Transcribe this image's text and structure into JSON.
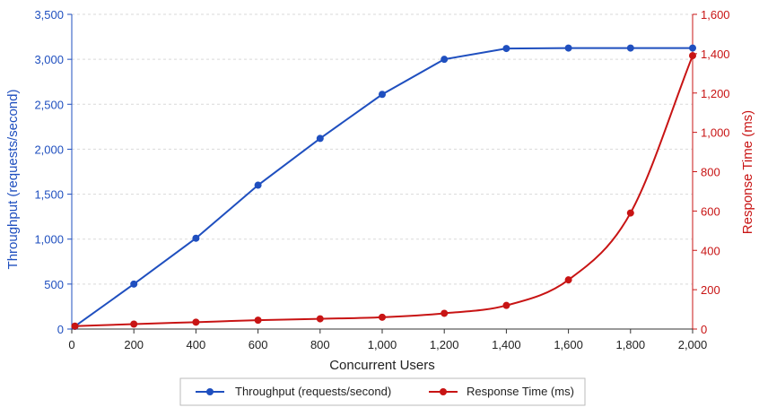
{
  "chart_data": {
    "type": "line",
    "xlabel": "Concurrent Users",
    "ylabel_left": "Throughput (requests/second)",
    "ylabel_right": "Response Time (ms)",
    "xlim": [
      0,
      2000
    ],
    "ylim_left": [
      0,
      3500
    ],
    "ylim_right": [
      0,
      1600
    ],
    "x_ticks": [
      0,
      200,
      400,
      600,
      800,
      1000,
      1200,
      1400,
      1600,
      1800,
      2000
    ],
    "x_tick_labels": [
      "0",
      "200",
      "400",
      "600",
      "800",
      "1,000",
      "1,200",
      "1,400",
      "1,600",
      "1,800",
      "2,000"
    ],
    "y_left_ticks": [
      0,
      500,
      1000,
      1500,
      2000,
      2500,
      3000,
      3500
    ],
    "y_left_tick_labels": [
      "0",
      "500",
      "1,000",
      "1,500",
      "2,000",
      "2,500",
      "3,000",
      "3,500"
    ],
    "y_right_ticks": [
      0,
      200,
      400,
      600,
      800,
      1000,
      1200,
      1400,
      1600
    ],
    "y_right_tick_labels": [
      "0",
      "200",
      "400",
      "600",
      "800",
      "1,000",
      "1,200",
      "1,400",
      "1,600"
    ],
    "grid": true,
    "legend_position": "bottom",
    "series": [
      {
        "name": "Throughput (requests/second)",
        "axis": "left",
        "color": "#1f4fbf",
        "smooth": false,
        "x": [
          10,
          200,
          400,
          600,
          800,
          1000,
          1200,
          1400,
          1600,
          1800,
          2000
        ],
        "y": [
          30,
          500,
          1010,
          1600,
          2120,
          2610,
          3000,
          3120,
          3125,
          3125,
          3125
        ]
      },
      {
        "name": "Response Time (ms)",
        "axis": "right",
        "color": "#c81414",
        "smooth": true,
        "x": [
          10,
          200,
          400,
          600,
          800,
          1000,
          1200,
          1400,
          1600,
          1800,
          2000
        ],
        "y": [
          15,
          25,
          35,
          45,
          52,
          60,
          80,
          120,
          250,
          590,
          1390
        ]
      }
    ]
  }
}
